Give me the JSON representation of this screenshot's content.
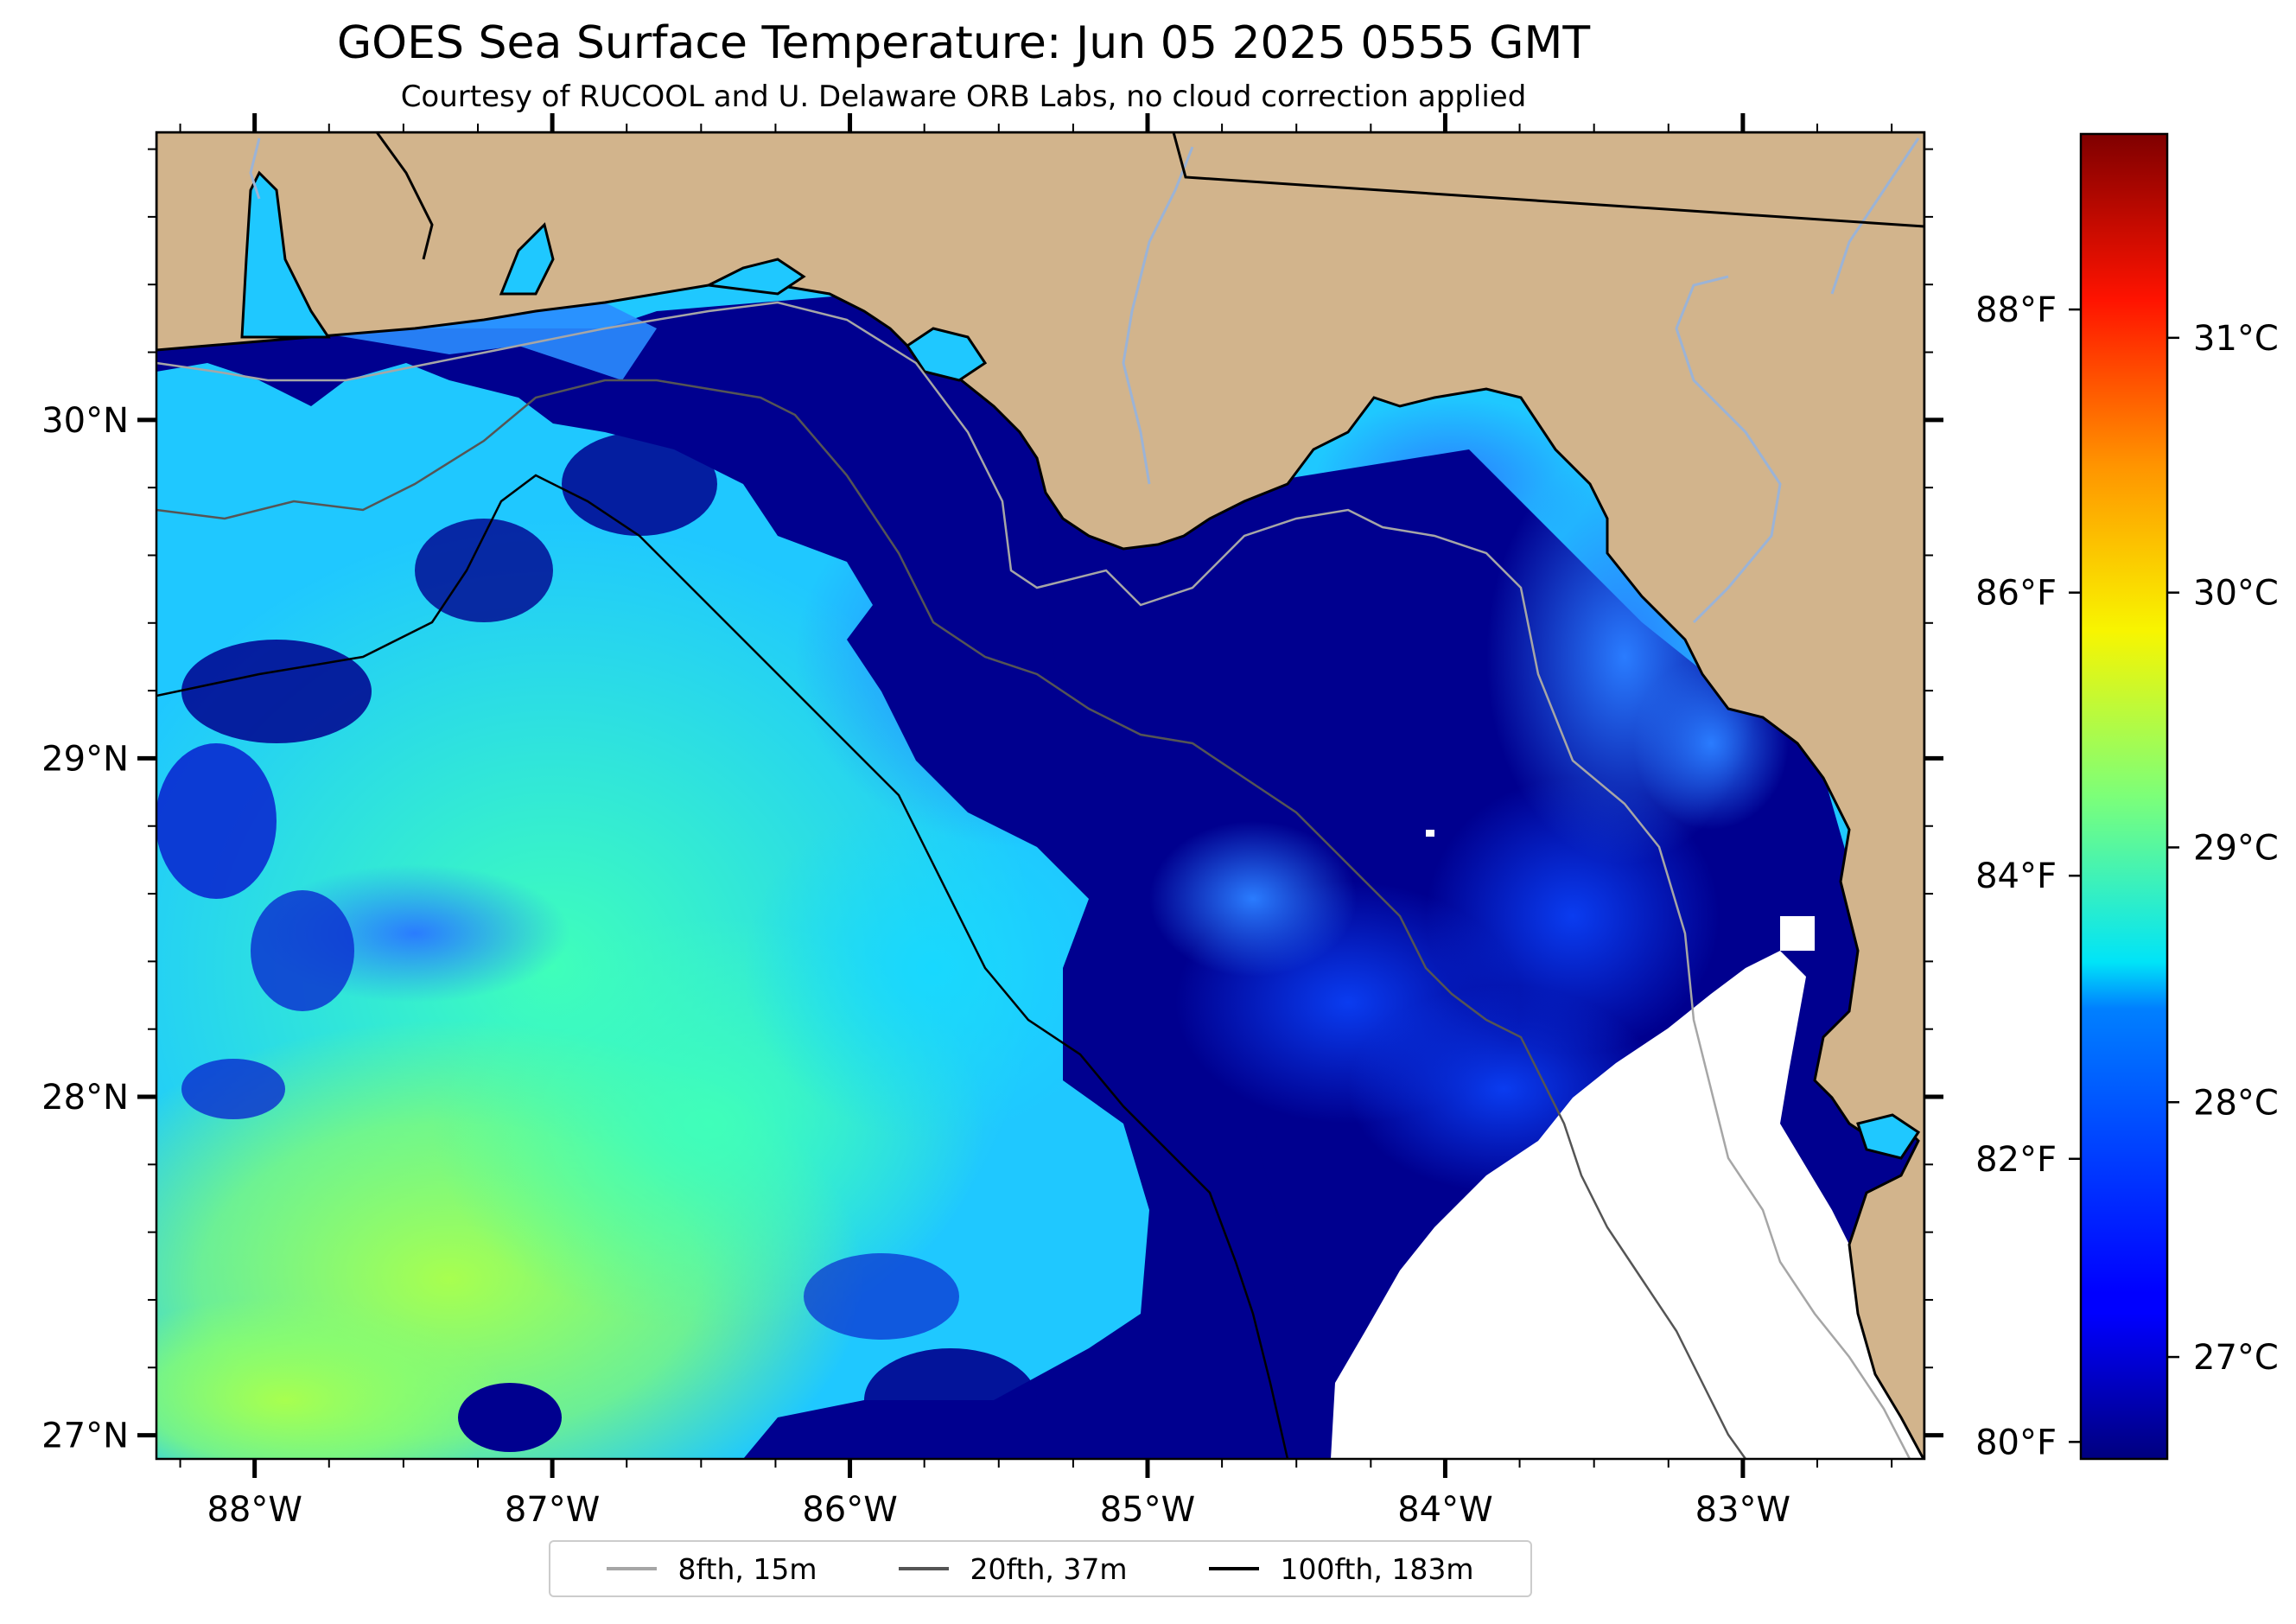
{
  "title": "GOES Sea Surface Temperature: Jun 05 2025 0555 GMT",
  "subtitle": "Courtesy of RUCOOL and U. Delaware ORB Labs, no cloud correction applied",
  "map": {
    "lon_range": [
      -88.33,
      -82.39
    ],
    "lat_range": [
      26.93,
      30.85
    ],
    "lon_ticks": [
      {
        "value": -88,
        "label": "88°W"
      },
      {
        "value": -87,
        "label": "87°W"
      },
      {
        "value": -86,
        "label": "86°W"
      },
      {
        "value": -85,
        "label": "85°W"
      },
      {
        "value": -84,
        "label": "84°W"
      },
      {
        "value": -83,
        "label": "83°W"
      }
    ],
    "lat_ticks": [
      {
        "value": 30,
        "label": "30°N"
      },
      {
        "value": 29,
        "label": "29°N"
      },
      {
        "value": 28,
        "label": "28°N"
      },
      {
        "value": 27,
        "label": "27°N"
      }
    ],
    "colors": {
      "land": "#d2b48c",
      "cold_water": "#00008f",
      "no_data": "#ffffff"
    }
  },
  "colorbar": {
    "colormap": "jet",
    "range_c": [
      26.6,
      31.8
    ],
    "celsius_ticks": [
      {
        "value": 27,
        "label": "27°C"
      },
      {
        "value": 28,
        "label": "28°C"
      },
      {
        "value": 29,
        "label": "29°C"
      },
      {
        "value": 30,
        "label": "30°C"
      },
      {
        "value": 31,
        "label": "31°C"
      }
    ],
    "fahrenheit_ticks": [
      {
        "value": 80,
        "label": "80°F"
      },
      {
        "value": 82,
        "label": "82°F"
      },
      {
        "value": 84,
        "label": "84°F"
      },
      {
        "value": 86,
        "label": "86°F"
      },
      {
        "value": 88,
        "label": "88°F"
      }
    ]
  },
  "legend": {
    "items": [
      {
        "label": "8fth, 15m",
        "color": "#a6a6a6"
      },
      {
        "label": "20fth, 37m",
        "color": "#555555"
      },
      {
        "label": "100fth, 183m",
        "color": "#000000"
      }
    ]
  }
}
